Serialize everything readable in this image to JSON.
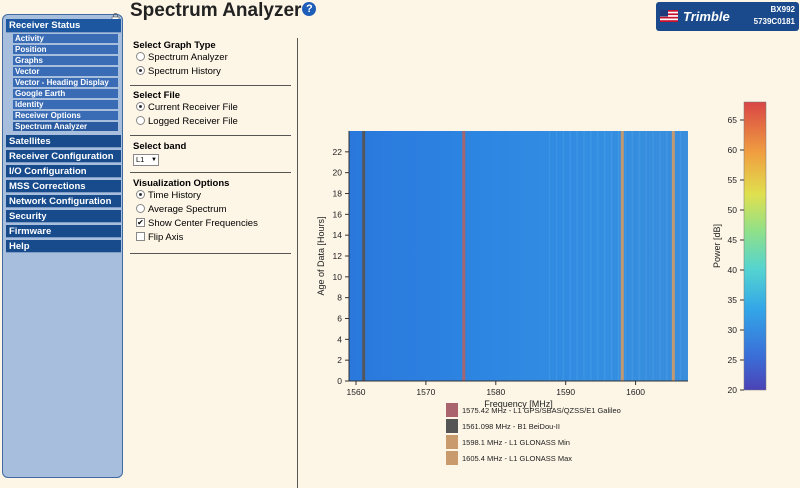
{
  "header": {
    "title": "Spectrum Analyzer",
    "help_icon": "question-icon",
    "brand": "Trimble",
    "model": "BX992",
    "serial": "5739C0181"
  },
  "sidebar": {
    "sections": [
      {
        "label": "Receiver Status",
        "active": true
      },
      {
        "label": "Satellites"
      },
      {
        "label": "Receiver Configuration"
      },
      {
        "label": "I/O Configuration"
      },
      {
        "label": "MSS Corrections"
      },
      {
        "label": "Network Configuration"
      },
      {
        "label": "Security"
      },
      {
        "label": "Firmware"
      },
      {
        "label": "Help"
      }
    ],
    "subitems": [
      "Activity",
      "Position",
      "Graphs",
      "Vector",
      "Vector - Heading Display",
      "Google Earth",
      "Identity",
      "Receiver Options",
      "Spectrum Analyzer"
    ]
  },
  "options": {
    "graph_type": {
      "title": "Select Graph Type",
      "options": [
        "Spectrum Analyzer",
        "Spectrum History"
      ],
      "selected": 1
    },
    "file": {
      "title": "Select File",
      "options": [
        "Current Receiver File",
        "Logged Receiver File"
      ],
      "selected": 0
    },
    "band": {
      "title": "Select band",
      "value": "L1"
    },
    "visualization": {
      "title": "Visualization Options",
      "radios": [
        "Time History",
        "Average Spectrum"
      ],
      "selected": 0,
      "checks": [
        {
          "label": "Show Center Frequencies",
          "checked": true
        },
        {
          "label": "Flip Axis",
          "checked": false
        }
      ]
    }
  },
  "chart_data": {
    "type": "heatmap",
    "title": "",
    "xlabel": "Frequency [MHz]",
    "ylabel": "Age of Data [Hours]",
    "colorbar_label": "Power [dB]",
    "xlim": [
      1559,
      1607.5
    ],
    "ylim": [
      0,
      24
    ],
    "xticks": [
      1560,
      1570,
      1580,
      1590,
      1600
    ],
    "yticks": [
      0,
      2,
      4,
      6,
      8,
      10,
      12,
      14,
      16,
      18,
      20,
      22
    ],
    "colorbar_range": [
      20,
      68
    ],
    "colorbar_ticks": [
      20,
      25,
      30,
      35,
      40,
      45,
      50,
      55,
      60,
      65
    ],
    "background_power_db": 33,
    "center_frequencies": [
      {
        "freq": 1575.42,
        "label": "1575.42 MHz -  L1 GPS/SBAS/QZSS/E1 Galileo",
        "color": "#a9646d"
      },
      {
        "freq": 1561.098,
        "label": "1561.098 MHz -  B1 BeiDou-II",
        "color": "#555555"
      },
      {
        "freq": 1598.1,
        "label": "1598.1 MHz -  L1 GLONASS Min",
        "color": "#c89a6c"
      },
      {
        "freq": 1605.4,
        "label": "1605.4 MHz -  L1 GLONASS Max",
        "color": "#c89a6c"
      }
    ]
  }
}
